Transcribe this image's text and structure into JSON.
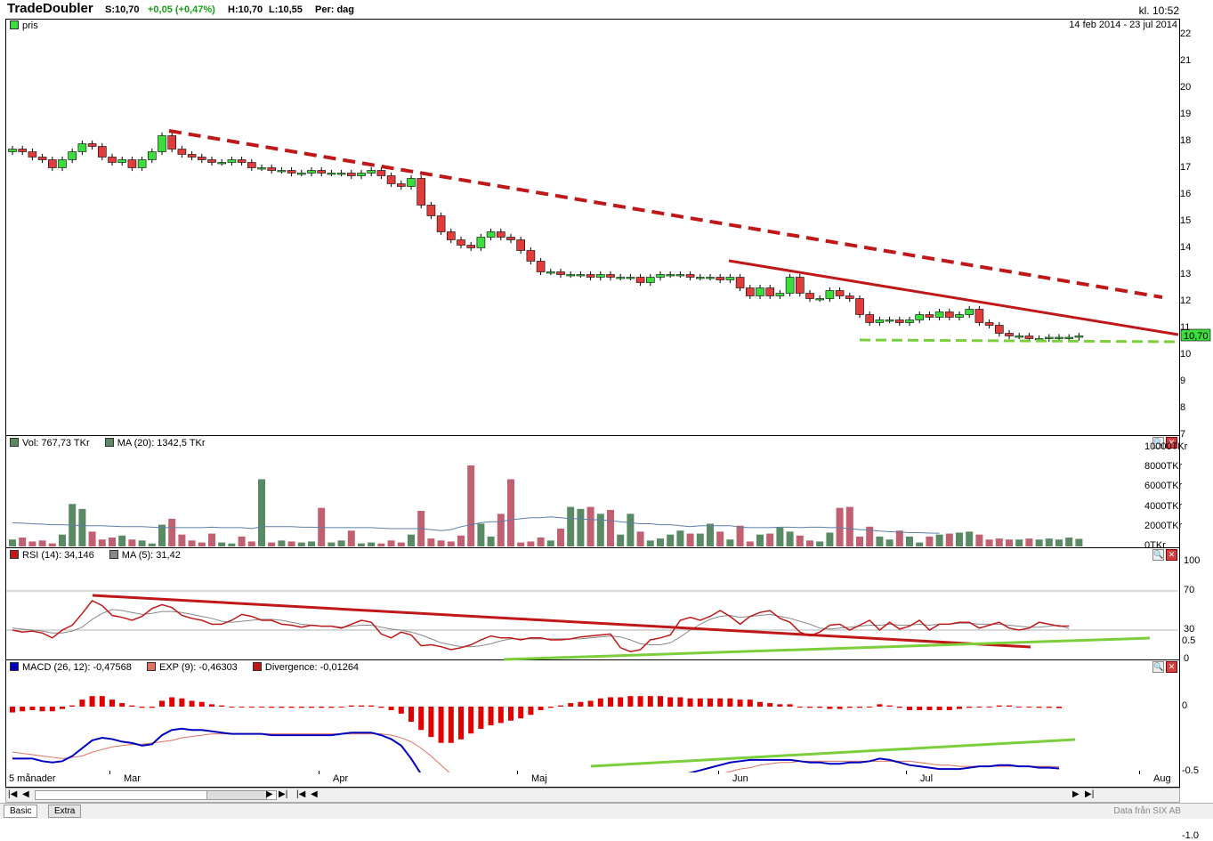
{
  "header": {
    "name": "TradeDoubler",
    "last": "S:10,70",
    "change": "+0,05 (+0,47%)",
    "high": "H:10,70",
    "low": "L:10,55",
    "period": "Per: dag",
    "clock": "kl. 10:52"
  },
  "price_panel": {
    "legend": "pris",
    "date_range": "14 feb 2014 - 23 jul 2014",
    "last_label": "10,70",
    "yticks": [
      "22",
      "21",
      "20",
      "19",
      "18",
      "17",
      "16",
      "15",
      "14",
      "13",
      "12",
      "11",
      "10",
      "9",
      "8",
      "7"
    ]
  },
  "volume_panel": {
    "legend_vol": "Vol: 767,73 TKr",
    "legend_ma": "MA (20): 1342,5 TKr",
    "yticks": [
      "10000TKr",
      "8000TKr",
      "6000TKr",
      "4000TKr",
      "2000TKr",
      "0TKr"
    ]
  },
  "rsi_panel": {
    "legend_rsi": "RSI (14): 34,146",
    "legend_ma": "MA (5): 31,42",
    "yticks": [
      "100",
      "70",
      "30",
      "0"
    ]
  },
  "macd_panel": {
    "legend_macd": "MACD (26, 12): -0,47568",
    "legend_exp": "EXP (9): -0,46303",
    "legend_div": "Divergence: -0,01264",
    "yticks": [
      "0.5",
      "0",
      "-0.5",
      "-1.0"
    ]
  },
  "xaxis": {
    "range_label": "5 månader",
    "months": [
      "Mar",
      "Apr",
      "Maj",
      "Jun",
      "Jul",
      "Aug"
    ]
  },
  "tabs": [
    "Basic",
    "Extra"
  ],
  "source": "Data från SIX AB",
  "colors": {
    "up": "#3ddc3d",
    "down": "#e03c3c",
    "trend": "#c01818",
    "support": "#7ccf3c",
    "macd": "#0000c0",
    "exp": "#e07060",
    "vol_up": "#5a8a64",
    "vol_down": "#c06070"
  },
  "chart_data": [
    {
      "type": "candlestick",
      "title": "pris",
      "x": [
        "2014-02-14",
        "2014-02-17",
        "2014-02-18",
        "2014-02-19",
        "2014-02-20",
        "2014-02-21",
        "2014-02-24",
        "2014-02-25",
        "2014-02-26",
        "2014-02-27",
        "2014-02-28",
        "2014-03-03",
        "2014-03-04",
        "2014-03-05",
        "2014-03-06",
        "2014-03-07",
        "2014-03-10",
        "2014-03-11",
        "2014-03-12",
        "2014-03-13",
        "2014-03-14",
        "2014-03-17",
        "2014-03-18",
        "2014-03-19",
        "2014-03-20",
        "2014-03-21",
        "2014-03-24",
        "2014-03-25",
        "2014-03-26",
        "2014-03-27",
        "2014-03-28",
        "2014-03-31",
        "2014-04-01",
        "2014-04-02",
        "2014-04-03",
        "2014-04-04",
        "2014-04-07",
        "2014-04-08",
        "2014-04-09",
        "2014-04-10",
        "2014-04-11",
        "2014-04-14",
        "2014-04-15",
        "2014-04-16",
        "2014-04-17",
        "2014-04-22",
        "2014-04-23",
        "2014-04-24",
        "2014-04-25",
        "2014-04-28",
        "2014-04-29",
        "2014-04-30",
        "2014-05-02",
        "2014-05-05",
        "2014-05-06",
        "2014-05-07",
        "2014-05-08",
        "2014-05-09",
        "2014-05-12",
        "2014-05-13",
        "2014-05-14",
        "2014-05-15",
        "2014-05-16",
        "2014-05-19",
        "2014-05-20",
        "2014-05-21",
        "2014-05-22",
        "2014-05-23",
        "2014-05-26",
        "2014-05-27",
        "2014-05-28",
        "2014-05-30",
        "2014-06-02",
        "2014-06-03",
        "2014-06-04",
        "2014-06-05",
        "2014-06-09",
        "2014-06-10",
        "2014-06-11",
        "2014-06-12",
        "2014-06-13",
        "2014-06-16",
        "2014-06-17",
        "2014-06-18",
        "2014-06-19",
        "2014-06-23",
        "2014-06-24",
        "2014-06-25",
        "2014-06-26",
        "2014-06-27",
        "2014-06-30",
        "2014-07-01",
        "2014-07-02",
        "2014-07-03",
        "2014-07-04",
        "2014-07-07",
        "2014-07-08",
        "2014-07-09",
        "2014-07-10",
        "2014-07-11",
        "2014-07-14",
        "2014-07-15",
        "2014-07-16",
        "2014-07-17",
        "2014-07-18",
        "2014-07-21",
        "2014-07-22",
        "2014-07-23"
      ],
      "open": [
        17.6,
        17.7,
        17.6,
        17.4,
        17.3,
        17.0,
        17.3,
        17.6,
        17.9,
        17.8,
        17.4,
        17.2,
        17.3,
        17.0,
        17.3,
        17.6,
        18.2,
        17.7,
        17.5,
        17.4,
        17.3,
        17.2,
        17.2,
        17.3,
        17.2,
        17.0,
        17.0,
        16.9,
        16.9,
        16.8,
        16.8,
        16.9,
        16.8,
        16.8,
        16.8,
        16.7,
        16.8,
        16.9,
        16.7,
        16.4,
        16.3,
        16.6,
        15.6,
        15.2,
        14.6,
        14.3,
        14.1,
        14.0,
        14.4,
        14.6,
        14.4,
        14.3,
        13.9,
        13.5,
        13.1,
        13.1,
        13.0,
        13.0,
        13.0,
        12.9,
        13.0,
        12.9,
        12.9,
        12.9,
        12.7,
        12.9,
        13.0,
        13.0,
        13.0,
        12.9,
        12.9,
        12.9,
        12.8,
        12.9,
        12.5,
        12.2,
        12.5,
        12.2,
        12.3,
        12.9,
        12.3,
        12.1,
        12.1,
        12.4,
        12.2,
        12.1,
        11.5,
        11.2,
        11.3,
        11.3,
        11.2,
        11.3,
        11.5,
        11.4,
        11.6,
        11.4,
        11.5,
        11.7,
        11.2,
        11.1,
        10.8,
        10.7,
        10.7,
        10.6,
        10.6,
        10.65,
        10.65,
        10.65
      ],
      "close": [
        17.7,
        17.6,
        17.4,
        17.3,
        17.0,
        17.3,
        17.6,
        17.9,
        17.8,
        17.4,
        17.2,
        17.3,
        17.0,
        17.3,
        17.6,
        18.2,
        17.7,
        17.5,
        17.4,
        17.3,
        17.2,
        17.2,
        17.3,
        17.2,
        17.0,
        17.0,
        16.9,
        16.9,
        16.8,
        16.8,
        16.9,
        16.8,
        16.8,
        16.8,
        16.7,
        16.8,
        16.9,
        16.7,
        16.4,
        16.3,
        16.6,
        15.6,
        15.2,
        14.6,
        14.3,
        14.1,
        14.0,
        14.4,
        14.6,
        14.4,
        14.3,
        13.9,
        13.5,
        13.1,
        13.1,
        13.0,
        13.0,
        13.0,
        12.9,
        13.0,
        12.9,
        12.9,
        12.9,
        12.7,
        12.9,
        13.0,
        13.0,
        13.0,
        12.9,
        12.9,
        12.9,
        12.8,
        12.9,
        12.5,
        12.2,
        12.5,
        12.2,
        12.3,
        12.9,
        12.3,
        12.1,
        12.1,
        12.4,
        12.2,
        12.1,
        11.5,
        11.2,
        11.3,
        11.3,
        11.2,
        11.3,
        11.5,
        11.4,
        11.6,
        11.4,
        11.5,
        11.7,
        11.2,
        11.1,
        10.8,
        10.7,
        10.7,
        10.6,
        10.6,
        10.65,
        10.65,
        10.65,
        10.7
      ],
      "yrange": [
        7,
        22
      ],
      "annotations": [
        "falling trendline (dashed) from Mar to Jul",
        "falling trendline (solid) from Jun to Aug",
        "support line (green dashed) near 10.4"
      ]
    },
    {
      "type": "bar",
      "title": "Vol",
      "series": [
        {
          "name": "Vol",
          "values": [
            700,
            900,
            500,
            600,
            300,
            1200,
            4300,
            3800,
            1500,
            700,
            900,
            1100,
            700,
            600,
            300,
            2200,
            2800,
            1200,
            600,
            400,
            1300,
            400,
            300,
            1000,
            500,
            6800,
            400,
            600,
            500,
            400,
            500,
            3900,
            400,
            600,
            1600,
            300,
            400,
            300,
            600,
            400,
            1200,
            3600,
            800,
            600,
            500,
            1100,
            8200,
            2300,
            1000,
            3300,
            6800,
            400,
            500,
            900,
            600,
            1800,
            4000,
            3800,
            4000,
            3300,
            3700,
            1200,
            3300,
            1500,
            600,
            800,
            1200,
            1600,
            1300,
            1300,
            2300,
            1500,
            700,
            2100,
            500,
            1200,
            1300,
            1900,
            1500,
            1100,
            600,
            500,
            1400,
            3900,
            4000,
            1000,
            2000,
            1000,
            700,
            1600,
            1000,
            400,
            1000,
            1200,
            1300,
            1400,
            1500,
            1200,
            700,
            800,
            700,
            700,
            800,
            700,
            800,
            700,
            900,
            767.73
          ]
        },
        {
          "name": "MA (20)",
          "values": [
            2400,
            2350,
            2300,
            2250,
            2200,
            2200,
            2150,
            2100,
            2100,
            2100,
            2050,
            2000,
            2000,
            2000,
            1950,
            1900,
            1900,
            1900,
            1900,
            1900,
            1950,
            1900,
            1900,
            1900,
            1800,
            2000,
            2000,
            2000,
            2000,
            1950,
            1950,
            1900,
            1900,
            1900,
            1900,
            1900,
            1900,
            1850,
            1800,
            1800,
            1800,
            1800,
            1700,
            1600,
            1700,
            2000,
            2200,
            2400,
            2500,
            2500,
            2700,
            2800,
            2900,
            2900,
            3000,
            2900,
            2800,
            2800,
            2700,
            2700,
            2600,
            2500,
            2400,
            2300,
            2300,
            2200,
            2200,
            2100,
            2000,
            2100,
            2100,
            2100,
            2100,
            1950,
            1900,
            1900,
            1900,
            1950,
            1950,
            1900,
            1950,
            1950,
            1900,
            1900,
            1800,
            1700,
            1650,
            1550,
            1500,
            1450,
            1400,
            1400,
            1350,
            1343
          ]
        }
      ],
      "ylim": [
        0,
        10000
      ]
    },
    {
      "type": "line",
      "title": "RSI",
      "series": [
        {
          "name": "RSI (14)",
          "values": [
            30,
            28,
            29,
            27,
            22,
            30,
            35,
            47,
            60,
            55,
            45,
            43,
            40,
            44,
            52,
            56,
            53,
            45,
            42,
            40,
            36,
            36,
            40,
            46,
            44,
            40,
            40,
            36,
            35,
            33,
            35,
            34,
            34,
            32,
            36,
            40,
            38,
            26,
            22,
            28,
            25,
            14,
            15,
            13,
            10,
            12,
            15,
            20,
            24,
            22,
            22,
            20,
            22,
            22,
            20,
            20,
            21,
            23,
            24,
            25,
            26,
            12,
            8,
            10,
            20,
            22,
            25,
            40,
            43,
            40,
            44,
            50,
            44,
            36,
            44,
            48,
            50,
            42,
            38,
            28,
            24,
            28,
            35,
            36,
            30,
            35,
            40,
            30,
            38,
            31,
            34,
            40,
            30,
            36,
            36,
            38,
            38,
            32,
            35,
            38,
            32,
            30,
            32,
            38,
            36,
            34,
            34.146
          ]
        },
        {
          "name": "MA (5)",
          "values": [
            32,
            31,
            30,
            29,
            27,
            27,
            29,
            33,
            41,
            47,
            51,
            50,
            48,
            46,
            47,
            49,
            49,
            48,
            46,
            44,
            42,
            39,
            38,
            39,
            40,
            41,
            41,
            40,
            38,
            36,
            35,
            34,
            34,
            33,
            34,
            35,
            35,
            33,
            31,
            30,
            28,
            25,
            21,
            17,
            15,
            13,
            13,
            14,
            16,
            19,
            21,
            21,
            21,
            21,
            21,
            21,
            21,
            21,
            22,
            23,
            24,
            23,
            20,
            16,
            15,
            15,
            17,
            23,
            30,
            36,
            41,
            44,
            45,
            43,
            44,
            45,
            46,
            44,
            42,
            39,
            36,
            32,
            31,
            32,
            33,
            34,
            35,
            35,
            36,
            35,
            35,
            36,
            35,
            36,
            36,
            37,
            37,
            36,
            36,
            36,
            35,
            34,
            33,
            33,
            34,
            35,
            31.42
          ]
        }
      ],
      "ylim": [
        0,
        100
      ]
    },
    {
      "type": "line",
      "title": "MACD",
      "series": [
        {
          "name": "MACD (26, 12)",
          "values": [
            -0.4,
            -0.4,
            -0.4,
            -0.42,
            -0.43,
            -0.42,
            -0.38,
            -0.32,
            -0.26,
            -0.24,
            -0.25,
            -0.27,
            -0.28,
            -0.3,
            -0.29,
            -0.22,
            -0.18,
            -0.17,
            -0.18,
            -0.18,
            -0.19,
            -0.2,
            -0.21,
            -0.21,
            -0.21,
            -0.21,
            -0.22,
            -0.22,
            -0.22,
            -0.22,
            -0.22,
            -0.22,
            -0.22,
            -0.21,
            -0.2,
            -0.2,
            -0.2,
            -0.22,
            -0.25,
            -0.3,
            -0.4,
            -0.52,
            -0.64,
            -0.76,
            -0.83,
            -0.86,
            -0.87,
            -0.87,
            -0.88,
            -0.9,
            -0.92,
            -0.93,
            -0.92,
            -0.9,
            -0.88,
            -0.86,
            -0.84,
            -0.82,
            -0.79,
            -0.75,
            -0.72,
            -0.69,
            -0.66,
            -0.63,
            -0.6,
            -0.57,
            -0.55,
            -0.53,
            -0.51,
            -0.49,
            -0.47,
            -0.45,
            -0.43,
            -0.42,
            -0.41,
            -0.41,
            -0.41,
            -0.41,
            -0.41,
            -0.42,
            -0.43,
            -0.43,
            -0.44,
            -0.44,
            -0.43,
            -0.43,
            -0.42,
            -0.4,
            -0.41,
            -0.43,
            -0.45,
            -0.46,
            -0.47,
            -0.48,
            -0.48,
            -0.48,
            -0.47,
            -0.46,
            -0.46,
            -0.45,
            -0.45,
            -0.46,
            -0.46,
            -0.47,
            -0.47,
            -0.47568
          ]
        },
        {
          "name": "EXP (9)",
          "values": [
            -0.35,
            -0.36,
            -0.37,
            -0.38,
            -0.39,
            -0.4,
            -0.39,
            -0.38,
            -0.35,
            -0.33,
            -0.31,
            -0.3,
            -0.29,
            -0.29,
            -0.28,
            -0.27,
            -0.26,
            -0.24,
            -0.23,
            -0.22,
            -0.21,
            -0.21,
            -0.21,
            -0.21,
            -0.21,
            -0.21,
            -0.21,
            -0.21,
            -0.21,
            -0.21,
            -0.21,
            -0.21,
            -0.21,
            -0.21,
            -0.21,
            -0.21,
            -0.21,
            -0.21,
            -0.22,
            -0.24,
            -0.27,
            -0.32,
            -0.38,
            -0.45,
            -0.52,
            -0.58,
            -0.64,
            -0.68,
            -0.72,
            -0.76,
            -0.8,
            -0.83,
            -0.85,
            -0.87,
            -0.87,
            -0.87,
            -0.87,
            -0.86,
            -0.84,
            -0.82,
            -0.8,
            -0.77,
            -0.75,
            -0.72,
            -0.69,
            -0.66,
            -0.63,
            -0.61,
            -0.58,
            -0.56,
            -0.54,
            -0.52,
            -0.5,
            -0.48,
            -0.47,
            -0.45,
            -0.44,
            -0.43,
            -0.43,
            -0.42,
            -0.42,
            -0.42,
            -0.42,
            -0.42,
            -0.42,
            -0.42,
            -0.42,
            -0.42,
            -0.42,
            -0.42,
            -0.42,
            -0.43,
            -0.44,
            -0.45,
            -0.45,
            -0.46,
            -0.46,
            -0.46,
            -0.46,
            -0.46,
            -0.46,
            -0.46,
            -0.46,
            -0.46,
            -0.46,
            -0.46303
          ]
        }
      ],
      "ylim": [
        -1.0,
        0.5
      ]
    }
  ]
}
